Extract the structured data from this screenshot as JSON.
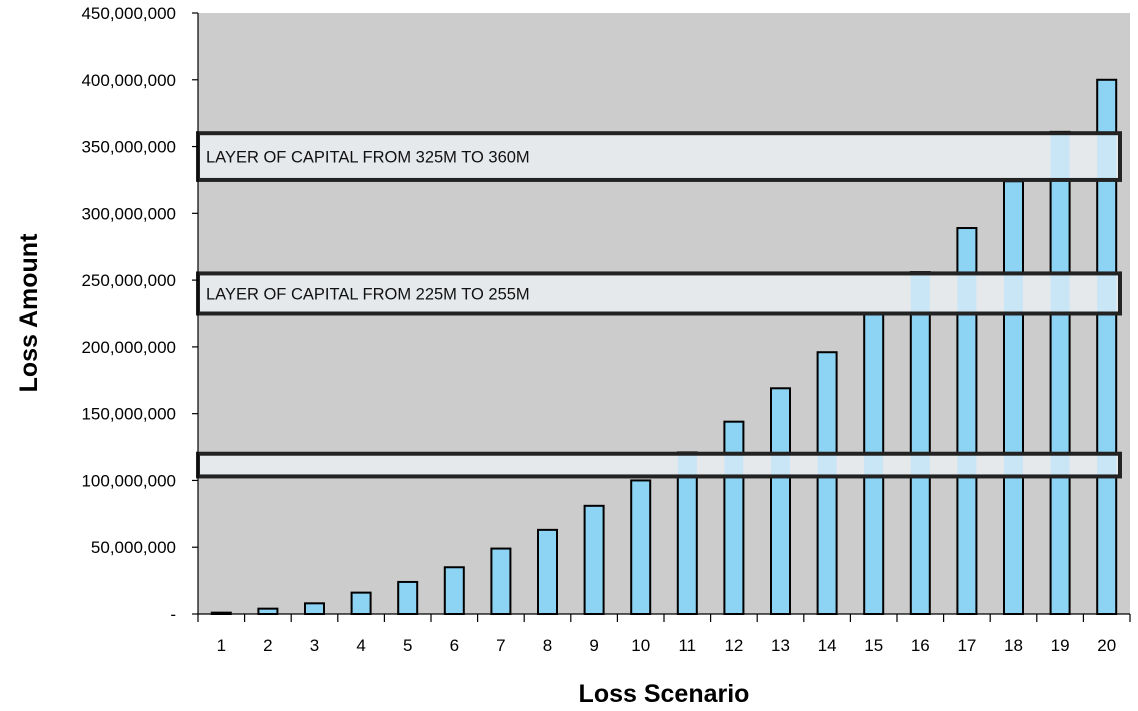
{
  "chart_data": {
    "type": "bar",
    "xlabel": "Loss Scenario",
    "ylabel": "Loss Amount",
    "categories": [
      "1",
      "2",
      "3",
      "4",
      "5",
      "6",
      "7",
      "8",
      "9",
      "10",
      "11",
      "12",
      "13",
      "14",
      "15",
      "16",
      "17",
      "18",
      "19",
      "20"
    ],
    "values": [
      1000000,
      4000000,
      8000000,
      16000000,
      24000000,
      35000000,
      49000000,
      63000000,
      81000000,
      100000000,
      121000000,
      144000000,
      169000000,
      196000000,
      225000000,
      256000000,
      289000000,
      324000000,
      361000000,
      400000000
    ],
    "ylim": [
      0,
      450000000
    ],
    "yticks": [
      {
        "value": 0,
        "label": "-"
      },
      {
        "value": 50000000,
        "label": "50,000,000"
      },
      {
        "value": 100000000,
        "label": "100,000,000"
      },
      {
        "value": 150000000,
        "label": "150,000,000"
      },
      {
        "value": 200000000,
        "label": "200,000,000"
      },
      {
        "value": 250000000,
        "label": "250,000,000"
      },
      {
        "value": 300000000,
        "label": "300,000,000"
      },
      {
        "value": 350000000,
        "label": "350,000,000"
      },
      {
        "value": 400000000,
        "label": "400,000,000"
      },
      {
        "value": 450000000,
        "label": "450,000,000"
      }
    ],
    "bands": [
      {
        "low": 325000000,
        "high": 360000000,
        "label": "LAYER OF CAPITAL FROM 325M TO 360M"
      },
      {
        "low": 225000000,
        "high": 255000000,
        "label": "LAYER OF CAPITAL FROM 225M TO 255M"
      },
      {
        "low": 103000000,
        "high": 120000000,
        "label": ""
      }
    ],
    "grid": false,
    "colors": {
      "plot_bg": "#cccccc",
      "bar_fill": "#8dd3f3",
      "bar_stroke": "#000000",
      "band_fill": "#e6e9ec",
      "band_bar_fill": "#c9e6f6",
      "band_stroke": "#222222"
    }
  }
}
